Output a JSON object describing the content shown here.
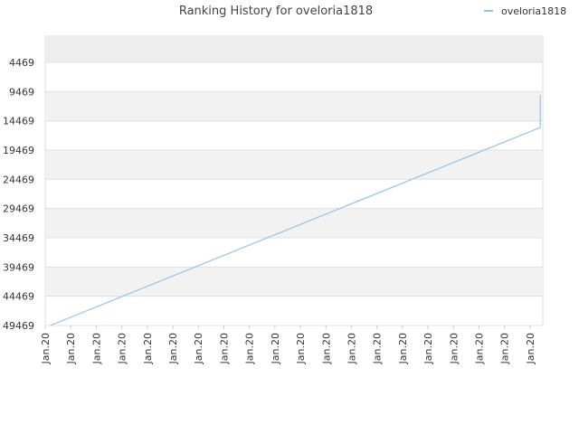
{
  "chart_data": {
    "type": "line",
    "title": "Ranking History for oveloria1818",
    "xlim": [
      0,
      19.5
    ],
    "xticks": [
      {
        "value": 0,
        "label": "Jan.20"
      },
      {
        "value": 1,
        "label": "Jan.20"
      },
      {
        "value": 2,
        "label": "Jan.20"
      },
      {
        "value": 3,
        "label": "Jan.20"
      },
      {
        "value": 4,
        "label": "Jan.20"
      },
      {
        "value": 5,
        "label": "Jan.20"
      },
      {
        "value": 6,
        "label": "Jan.20"
      },
      {
        "value": 7,
        "label": "Jan.20"
      },
      {
        "value": 8,
        "label": "Jan.20"
      },
      {
        "value": 9,
        "label": "Jan.20"
      },
      {
        "value": 10,
        "label": "Jan.20"
      },
      {
        "value": 11,
        "label": "Jan.20"
      },
      {
        "value": 12,
        "label": "Jan.20"
      },
      {
        "value": 13,
        "label": "Jan.20"
      },
      {
        "value": 14,
        "label": "Jan.20"
      },
      {
        "value": 15,
        "label": "Jan.20"
      },
      {
        "value": 16,
        "label": "Jan.20"
      },
      {
        "value": 17,
        "label": "Jan.20"
      },
      {
        "value": 18,
        "label": "Jan.20"
      },
      {
        "value": 19,
        "label": "Jan.20"
      }
    ],
    "ylim": [
      49469,
      0
    ],
    "yticks": [
      4469,
      9469,
      14469,
      19469,
      24469,
      29469,
      34469,
      39469,
      44469,
      49469
    ],
    "series": [
      {
        "name": "oveloria1818",
        "color": "#90c4ee",
        "x": [
          0.2,
          19.4,
          19.4
        ],
        "values": [
          49469,
          15614,
          10049
        ]
      }
    ],
    "legend": "top-right",
    "grid": true
  }
}
